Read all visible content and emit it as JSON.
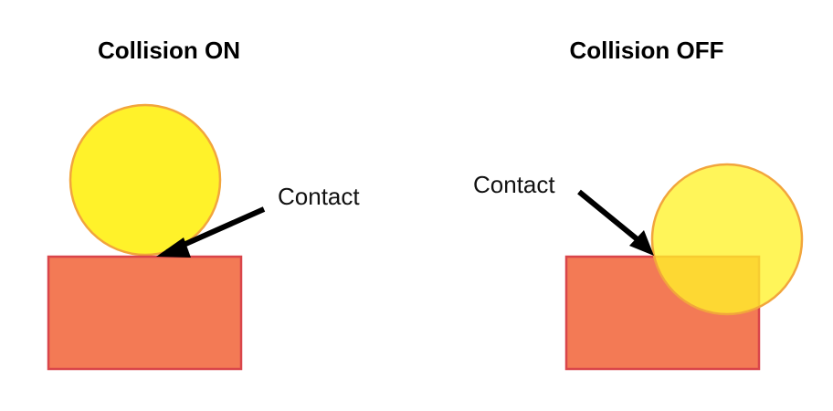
{
  "panels": [
    {
      "title": "Collision ON",
      "contact_label": "Contact"
    },
    {
      "title": "Collision OFF",
      "contact_label": "Contact"
    }
  ],
  "colors": {
    "circle_fill": "#FFF22A",
    "circle_stroke": "#F2A53C",
    "box_fill": "#F37A55",
    "box_stroke": "#D9454A",
    "arrow": "#000000"
  }
}
